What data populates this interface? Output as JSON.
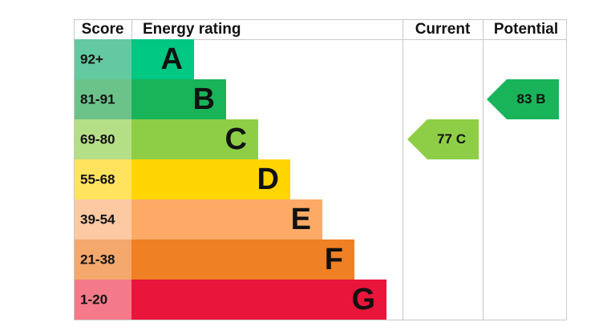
{
  "header": {
    "score": "Score",
    "rating": "Energy rating",
    "current": "Current",
    "potential": "Potential"
  },
  "rows": [
    {
      "score": "92+",
      "band": "A"
    },
    {
      "score": "81-91",
      "band": "B"
    },
    {
      "score": "69-80",
      "band": "C"
    },
    {
      "score": "55-68",
      "band": "D"
    },
    {
      "score": "39-54",
      "band": "E"
    },
    {
      "score": "21-38",
      "band": "F"
    },
    {
      "score": "1-20",
      "band": "G"
    }
  ],
  "current": {
    "value": 77,
    "band": "C"
  },
  "potential": {
    "value": 83,
    "band": "B"
  }
}
